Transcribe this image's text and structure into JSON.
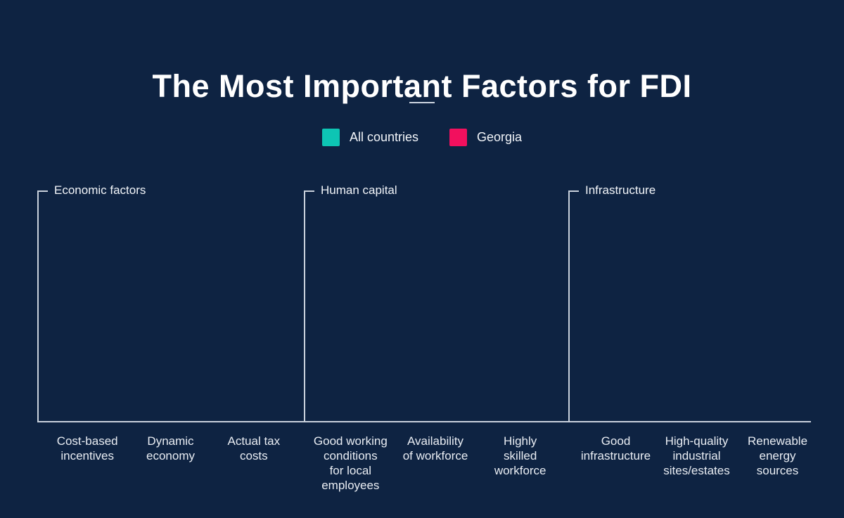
{
  "page": {
    "background_color": "#0e2342",
    "axis_color": "#c9d1dc",
    "text_color": "#f2f5f9"
  },
  "title": {
    "text": "The Most Important Factors for FDI"
  },
  "legend": {
    "items": [
      {
        "label": "All countries",
        "color": "#0dc5b4"
      },
      {
        "label": "Georgia",
        "color": "#f2105e"
      }
    ]
  },
  "sections": [
    {
      "title": "Economic factors",
      "labels": [
        "Cost-based\nincentives",
        "Dynamic\neconomy",
        "Actual tax\ncosts"
      ]
    },
    {
      "title": "Human capital",
      "labels": [
        "Good working\nconditions\nfor local\nemployees",
        "Availability\nof workforce",
        "Highly\nskilled\nworkforce"
      ]
    },
    {
      "title": "Infrastructure",
      "labels": [
        "Good\ninfrastructure",
        "High-quality\nindustrial\nsites/estates",
        "Renewable\nenergy\nsources"
      ]
    }
  ],
  "chart_data": {
    "type": "bar",
    "title": "The Most Important Factors for FDI",
    "legend_position": "top-center",
    "grid": false,
    "plot_area_empty": true,
    "series": [
      {
        "name": "All countries",
        "color": "#0dc5b4",
        "values": []
      },
      {
        "name": "Georgia",
        "color": "#f2105e",
        "values": []
      }
    ],
    "groups": [
      {
        "title": "Economic factors",
        "categories": [
          "Cost-based incentives",
          "Dynamic economy",
          "Actual tax costs"
        ]
      },
      {
        "title": "Human capital",
        "categories": [
          "Good working conditions for local employees",
          "Availability of workforce",
          "Highly skilled workforce"
        ]
      },
      {
        "title": "Infrastructure",
        "categories": [
          "Good infrastructure",
          "High-quality industrial sites/estates",
          "Renewable energy sources"
        ]
      }
    ]
  }
}
